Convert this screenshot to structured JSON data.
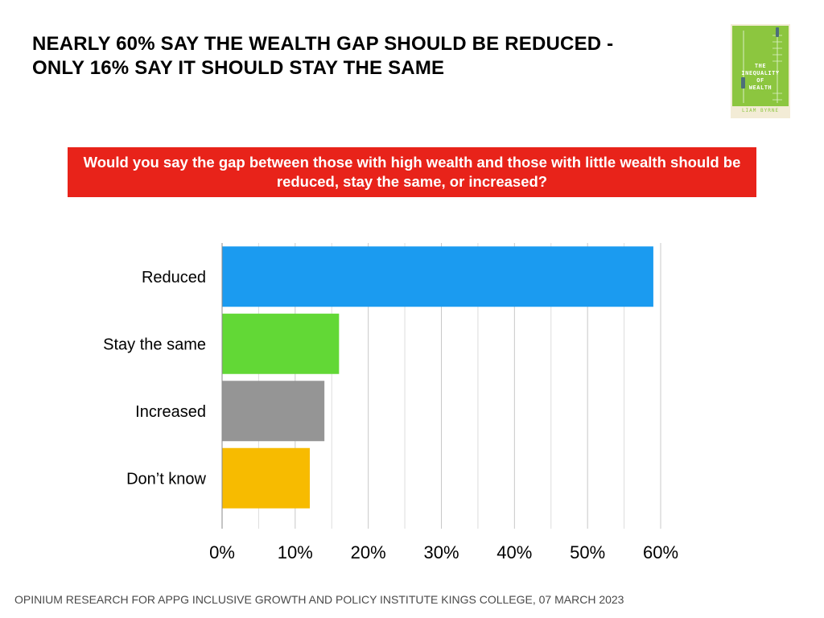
{
  "headline": {
    "line1": "NEARLY 60% SAY THE WEALTH GAP SHOULD BE REDUCED -",
    "line2": "ONLY 16% SAY IT SHOULD STAY THE SAME"
  },
  "book_cover": {
    "title_line1": "THE",
    "title_line2": "INEQUALITY",
    "title_line3": "OF",
    "title_line4": "WEALTH",
    "author": "LIAM BYRNE",
    "color": "#8cc63f"
  },
  "question": "Would you say the gap between those with high wealth and those with little wealth should be reduced, stay the same, or increased?",
  "chart_data": {
    "type": "bar",
    "orientation": "horizontal",
    "categories": [
      "Reduced",
      "Stay the same",
      "Increased",
      "Don’t know"
    ],
    "values": [
      59,
      16,
      14,
      12
    ],
    "colors": [
      "#1b9bf0",
      "#62d836",
      "#959595",
      "#f7bb00"
    ],
    "xlim": [
      0,
      60
    ],
    "x_ticks": [
      "0%",
      "10%",
      "20%",
      "30%",
      "40%",
      "50%",
      "60%"
    ],
    "x_tick_values": [
      0,
      10,
      20,
      30,
      40,
      50,
      60
    ],
    "grid": true
  },
  "source": "OPINIUM RESEARCH FOR APPG INCLUSIVE GROWTH AND POLICY INSTITUTE KINGS COLLEGE, 07 MARCH 2023"
}
